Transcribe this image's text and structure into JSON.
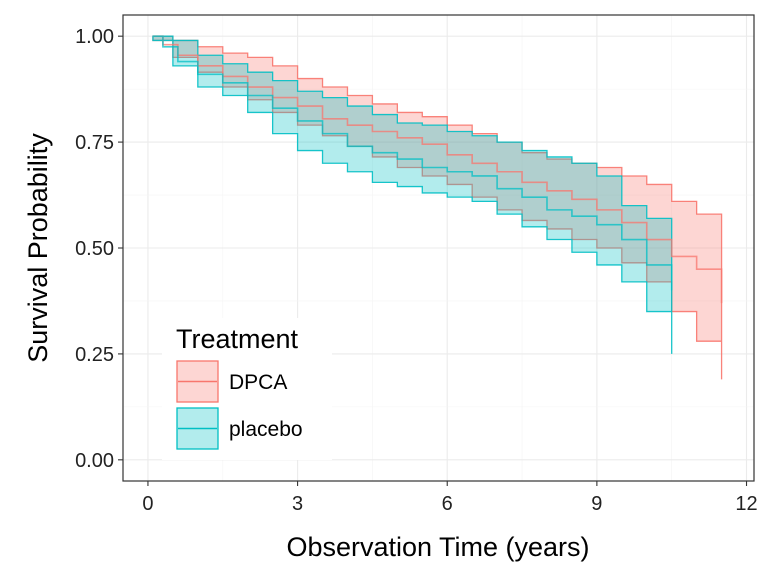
{
  "chart_data": {
    "type": "line",
    "subtype": "kaplan-meier survival curves with confidence bands (step)",
    "title": "",
    "xlabel": "Observation Time (years)",
    "ylabel": "Survival Probability",
    "xlim": [
      -0.5,
      12.15
    ],
    "ylim": [
      -0.05,
      1.05
    ],
    "x_ticks": [
      0,
      3,
      6,
      9,
      12
    ],
    "x_tick_labels": [
      "0",
      "3",
      "6",
      "9",
      "12"
    ],
    "y_ticks": [
      0.0,
      0.25,
      0.5,
      0.75,
      1.0
    ],
    "y_tick_labels": [
      "0.00",
      "0.25",
      "0.50",
      "0.75",
      "1.00"
    ],
    "grid": true,
    "legend": {
      "title": "Treatment",
      "position": "bottom-left inside"
    },
    "series": [
      {
        "name": "DPCA",
        "color": "#F8766D",
        "fill": "#F8766D",
        "estimate": [
          [
            0.1,
            1.0
          ],
          [
            0.3,
            0.98
          ],
          [
            0.6,
            0.955
          ],
          [
            1.0,
            0.93
          ],
          [
            1.5,
            0.905
          ],
          [
            2.0,
            0.88
          ],
          [
            2.5,
            0.855
          ],
          [
            3.0,
            0.835
          ],
          [
            3.5,
            0.805
          ],
          [
            4.0,
            0.79
          ],
          [
            4.5,
            0.775
          ],
          [
            5.0,
            0.76
          ],
          [
            5.5,
            0.745
          ],
          [
            6.0,
            0.72
          ],
          [
            6.5,
            0.7
          ],
          [
            7.0,
            0.68
          ],
          [
            7.5,
            0.655
          ],
          [
            8.0,
            0.635
          ],
          [
            8.5,
            0.615
          ],
          [
            9.0,
            0.59
          ],
          [
            9.5,
            0.56
          ],
          [
            10.0,
            0.52
          ],
          [
            10.5,
            0.48
          ],
          [
            11.0,
            0.45
          ],
          [
            11.5,
            0.37
          ]
        ],
        "upper": [
          [
            0.1,
            1.0
          ],
          [
            0.5,
            0.99
          ],
          [
            1.0,
            0.975
          ],
          [
            1.5,
            0.96
          ],
          [
            2.0,
            0.95
          ],
          [
            2.5,
            0.93
          ],
          [
            3.0,
            0.9
          ],
          [
            3.5,
            0.88
          ],
          [
            4.0,
            0.86
          ],
          [
            4.5,
            0.84
          ],
          [
            5.0,
            0.82
          ],
          [
            5.5,
            0.81
          ],
          [
            6.0,
            0.79
          ],
          [
            6.5,
            0.77
          ],
          [
            7.0,
            0.75
          ],
          [
            7.5,
            0.725
          ],
          [
            8.0,
            0.71
          ],
          [
            8.5,
            0.7
          ],
          [
            9.0,
            0.69
          ],
          [
            9.5,
            0.67
          ],
          [
            10.0,
            0.65
          ],
          [
            10.5,
            0.61
          ],
          [
            11.0,
            0.58
          ],
          [
            11.5,
            0.52
          ]
        ],
        "lower": [
          [
            0.1,
            0.99
          ],
          [
            0.5,
            0.95
          ],
          [
            1.0,
            0.915
          ],
          [
            1.5,
            0.88
          ],
          [
            2.0,
            0.85
          ],
          [
            2.5,
            0.82
          ],
          [
            3.0,
            0.79
          ],
          [
            3.5,
            0.765
          ],
          [
            4.0,
            0.74
          ],
          [
            4.5,
            0.715
          ],
          [
            5.0,
            0.69
          ],
          [
            5.5,
            0.67
          ],
          [
            6.0,
            0.65
          ],
          [
            6.5,
            0.62
          ],
          [
            7.0,
            0.59
          ],
          [
            7.5,
            0.565
          ],
          [
            8.0,
            0.545
          ],
          [
            8.5,
            0.52
          ],
          [
            9.0,
            0.5
          ],
          [
            9.5,
            0.465
          ],
          [
            10.0,
            0.42
          ],
          [
            10.5,
            0.35
          ],
          [
            11.0,
            0.28
          ],
          [
            11.5,
            0.19
          ]
        ]
      },
      {
        "name": "placebo",
        "color": "#00BFC4",
        "fill": "#00BFC4",
        "estimate": [
          [
            0.1,
            1.0
          ],
          [
            0.3,
            0.975
          ],
          [
            0.6,
            0.94
          ],
          [
            1.0,
            0.91
          ],
          [
            1.5,
            0.89
          ],
          [
            2.0,
            0.86
          ],
          [
            2.5,
            0.83
          ],
          [
            3.0,
            0.8
          ],
          [
            3.5,
            0.77
          ],
          [
            4.0,
            0.74
          ],
          [
            4.5,
            0.725
          ],
          [
            5.0,
            0.71
          ],
          [
            5.5,
            0.69
          ],
          [
            6.0,
            0.68
          ],
          [
            6.5,
            0.67
          ],
          [
            7.0,
            0.64
          ],
          [
            7.5,
            0.62
          ],
          [
            8.0,
            0.59
          ],
          [
            8.5,
            0.575
          ],
          [
            9.0,
            0.555
          ],
          [
            9.5,
            0.52
          ],
          [
            10.0,
            0.46
          ],
          [
            10.5,
            0.4
          ]
        ],
        "upper": [
          [
            0.1,
            1.0
          ],
          [
            0.5,
            0.99
          ],
          [
            1.0,
            0.955
          ],
          [
            1.5,
            0.935
          ],
          [
            2.0,
            0.915
          ],
          [
            2.5,
            0.895
          ],
          [
            3.0,
            0.87
          ],
          [
            3.5,
            0.855
          ],
          [
            4.0,
            0.835
          ],
          [
            4.5,
            0.815
          ],
          [
            5.0,
            0.795
          ],
          [
            5.5,
            0.79
          ],
          [
            6.0,
            0.775
          ],
          [
            6.5,
            0.765
          ],
          [
            7.0,
            0.75
          ],
          [
            7.5,
            0.73
          ],
          [
            8.0,
            0.715
          ],
          [
            8.5,
            0.7
          ],
          [
            9.0,
            0.67
          ],
          [
            9.5,
            0.6
          ],
          [
            10.0,
            0.57
          ],
          [
            10.5,
            0.55
          ]
        ],
        "lower": [
          [
            0.1,
            0.99
          ],
          [
            0.5,
            0.93
          ],
          [
            1.0,
            0.88
          ],
          [
            1.5,
            0.86
          ],
          [
            2.0,
            0.82
          ],
          [
            2.5,
            0.77
          ],
          [
            3.0,
            0.73
          ],
          [
            3.5,
            0.7
          ],
          [
            4.0,
            0.68
          ],
          [
            4.5,
            0.655
          ],
          [
            5.0,
            0.645
          ],
          [
            5.5,
            0.63
          ],
          [
            6.0,
            0.62
          ],
          [
            6.5,
            0.61
          ],
          [
            7.0,
            0.58
          ],
          [
            7.5,
            0.55
          ],
          [
            8.0,
            0.52
          ],
          [
            8.5,
            0.49
          ],
          [
            9.0,
            0.46
          ],
          [
            9.5,
            0.42
          ],
          [
            10.0,
            0.35
          ],
          [
            10.5,
            0.25
          ]
        ]
      }
    ]
  }
}
